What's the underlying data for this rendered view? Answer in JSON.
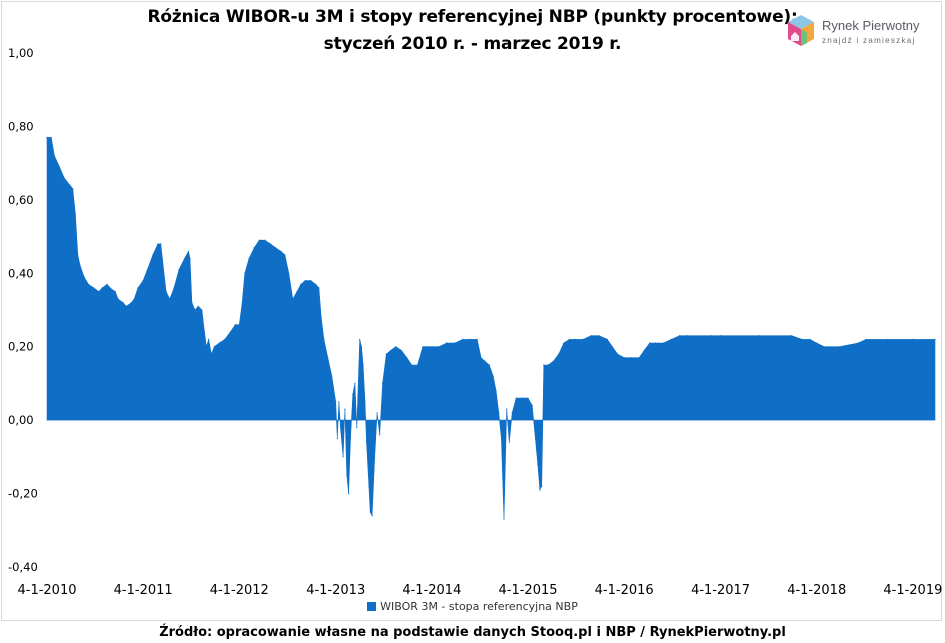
{
  "logo": {
    "name": "Rynek Pierwotny",
    "tagline": "znajdź i zamieszkaj"
  },
  "source": "Źródło: opracowanie własne na podstawie danych Stooq.pl i NBP / RynekPierwotny.pl",
  "chart_data": {
    "type": "area",
    "title": "Różnica WIBOR-u 3M i stopy referencyjnej NBP (punkty procentowe):",
    "subtitle": "styczeń 2010 r. - marzec 2019 r.",
    "xlabel": "",
    "ylabel": "",
    "ylim": [
      -0.4,
      1.0
    ],
    "yticks": [
      -0.4,
      -0.2,
      0.0,
      0.2,
      0.4,
      0.6,
      0.8,
      1.0
    ],
    "ytick_labels": [
      "-0,40",
      "-0,20",
      "0,00",
      "0,20",
      "0,40",
      "0,60",
      "0,80",
      "1,00"
    ],
    "xlim": [
      "2010-01-04",
      "2019-03-29"
    ],
    "xtick_dates": [
      "2010-01-04",
      "2011-01-04",
      "2012-01-04",
      "2013-01-04",
      "2014-01-04",
      "2015-01-04",
      "2016-01-04",
      "2017-01-04",
      "2018-01-04",
      "2019-01-04"
    ],
    "xtick_labels": [
      "4-1-2010",
      "4-1-2011",
      "4-1-2012",
      "4-1-2013",
      "4-1-2014",
      "4-1-2015",
      "4-1-2016",
      "4-1-2017",
      "4-1-2018",
      "4-1-2019"
    ],
    "grid": false,
    "legend": "bottom",
    "colors": {
      "series": "#0f6fc6"
    },
    "series": [
      {
        "name": "WIBOR 3M - stopa referencyjna NBP",
        "points": [
          [
            "2010-01-04",
            0.77
          ],
          [
            "2010-01-20",
            0.77
          ],
          [
            "2010-02-01",
            0.72
          ],
          [
            "2010-02-20",
            0.69
          ],
          [
            "2010-03-10",
            0.66
          ],
          [
            "2010-04-01",
            0.64
          ],
          [
            "2010-04-12",
            0.63
          ],
          [
            "2010-04-22",
            0.56
          ],
          [
            "2010-05-01",
            0.45
          ],
          [
            "2010-05-10",
            0.42
          ],
          [
            "2010-05-25",
            0.39
          ],
          [
            "2010-06-10",
            0.37
          ],
          [
            "2010-07-01",
            0.36
          ],
          [
            "2010-07-20",
            0.35
          ],
          [
            "2010-08-01",
            0.36
          ],
          [
            "2010-08-20",
            0.37
          ],
          [
            "2010-09-01",
            0.36
          ],
          [
            "2010-09-20",
            0.35
          ],
          [
            "2010-10-01",
            0.33
          ],
          [
            "2010-10-20",
            0.32
          ],
          [
            "2010-11-01",
            0.31
          ],
          [
            "2010-11-20",
            0.32
          ],
          [
            "2010-12-01",
            0.33
          ],
          [
            "2010-12-15",
            0.36
          ],
          [
            "2011-01-04",
            0.38
          ],
          [
            "2011-01-20",
            0.41
          ],
          [
            "2011-02-10",
            0.45
          ],
          [
            "2011-03-01",
            0.48
          ],
          [
            "2011-03-12",
            0.48
          ],
          [
            "2011-03-18",
            0.44
          ],
          [
            "2011-04-01",
            0.35
          ],
          [
            "2011-04-15",
            0.33
          ],
          [
            "2011-05-01",
            0.36
          ],
          [
            "2011-05-20",
            0.41
          ],
          [
            "2011-06-10",
            0.44
          ],
          [
            "2011-06-25",
            0.46
          ],
          [
            "2011-07-01",
            0.44
          ],
          [
            "2011-07-08",
            0.32
          ],
          [
            "2011-07-20",
            0.3
          ],
          [
            "2011-08-01",
            0.31
          ],
          [
            "2011-08-15",
            0.3
          ],
          [
            "2011-08-25",
            0.24
          ],
          [
            "2011-09-01",
            0.2
          ],
          [
            "2011-09-10",
            0.22
          ],
          [
            "2011-09-20",
            0.18
          ],
          [
            "2011-10-01",
            0.2
          ],
          [
            "2011-10-20",
            0.21
          ],
          [
            "2011-11-10",
            0.22
          ],
          [
            "2011-12-01",
            0.24
          ],
          [
            "2011-12-20",
            0.26
          ],
          [
            "2012-01-04",
            0.26
          ],
          [
            "2012-01-15",
            0.32
          ],
          [
            "2012-01-25",
            0.4
          ],
          [
            "2012-02-10",
            0.44
          ],
          [
            "2012-03-01",
            0.47
          ],
          [
            "2012-03-20",
            0.49
          ],
          [
            "2012-04-10",
            0.49
          ],
          [
            "2012-05-01",
            0.48
          ],
          [
            "2012-05-20",
            0.47
          ],
          [
            "2012-06-10",
            0.46
          ],
          [
            "2012-06-25",
            0.45
          ],
          [
            "2012-07-10",
            0.4
          ],
          [
            "2012-07-25",
            0.33
          ],
          [
            "2012-08-10",
            0.35
          ],
          [
            "2012-08-25",
            0.37
          ],
          [
            "2012-09-10",
            0.38
          ],
          [
            "2012-10-01",
            0.38
          ],
          [
            "2012-10-20",
            0.37
          ],
          [
            "2012-11-01",
            0.36
          ],
          [
            "2012-11-10",
            0.28
          ],
          [
            "2012-11-20",
            0.22
          ],
          [
            "2012-12-05",
            0.17
          ],
          [
            "2012-12-20",
            0.12
          ],
          [
            "2013-01-04",
            0.05
          ],
          [
            "2013-01-10",
            -0.05
          ],
          [
            "2013-01-16",
            0.05
          ],
          [
            "2013-01-22",
            -0.02
          ],
          [
            "2013-02-01",
            -0.1
          ],
          [
            "2013-02-08",
            0.03
          ],
          [
            "2013-02-15",
            -0.15
          ],
          [
            "2013-02-22",
            -0.2
          ],
          [
            "2013-03-01",
            -0.05
          ],
          [
            "2013-03-10",
            0.07
          ],
          [
            "2013-03-18",
            0.1
          ],
          [
            "2013-03-25",
            -0.02
          ],
          [
            "2013-04-05",
            0.22
          ],
          [
            "2013-04-12",
            0.2
          ],
          [
            "2013-04-18",
            0.15
          ],
          [
            "2013-04-25",
            0.05
          ],
          [
            "2013-05-01",
            -0.06
          ],
          [
            "2013-05-10",
            -0.18
          ],
          [
            "2013-05-15",
            -0.25
          ],
          [
            "2013-05-22",
            -0.26
          ],
          [
            "2013-06-01",
            -0.1
          ],
          [
            "2013-06-10",
            0.02
          ],
          [
            "2013-06-20",
            -0.04
          ],
          [
            "2013-07-01",
            0.1
          ],
          [
            "2013-07-15",
            0.18
          ],
          [
            "2013-08-01",
            0.19
          ],
          [
            "2013-08-20",
            0.2
          ],
          [
            "2013-09-10",
            0.19
          ],
          [
            "2013-10-01",
            0.17
          ],
          [
            "2013-10-20",
            0.15
          ],
          [
            "2013-11-10",
            0.15
          ],
          [
            "2013-12-01",
            0.2
          ],
          [
            "2013-12-20",
            0.2
          ],
          [
            "2014-01-04",
            0.2
          ],
          [
            "2014-02-01",
            0.2
          ],
          [
            "2014-03-01",
            0.21
          ],
          [
            "2014-04-01",
            0.21
          ],
          [
            "2014-05-01",
            0.22
          ],
          [
            "2014-06-01",
            0.22
          ],
          [
            "2014-06-25",
            0.22
          ],
          [
            "2014-07-10",
            0.17
          ],
          [
            "2014-07-25",
            0.16
          ],
          [
            "2014-08-10",
            0.15
          ],
          [
            "2014-08-25",
            0.12
          ],
          [
            "2014-09-05",
            0.08
          ],
          [
            "2014-09-15",
            0.02
          ],
          [
            "2014-09-25",
            -0.05
          ],
          [
            "2014-10-05",
            -0.27
          ],
          [
            "2014-10-15",
            0.03
          ],
          [
            "2014-10-25",
            -0.06
          ],
          [
            "2014-11-05",
            0.02
          ],
          [
            "2014-11-20",
            0.06
          ],
          [
            "2014-12-15",
            0.06
          ],
          [
            "2015-01-04",
            0.06
          ],
          [
            "2015-01-20",
            0.04
          ],
          [
            "2015-02-01",
            -0.05
          ],
          [
            "2015-02-10",
            -0.12
          ],
          [
            "2015-02-18",
            -0.19
          ],
          [
            "2015-02-25",
            -0.18
          ],
          [
            "2015-03-05",
            0.15
          ],
          [
            "2015-03-20",
            0.15
          ],
          [
            "2015-04-10",
            0.16
          ],
          [
            "2015-05-01",
            0.18
          ],
          [
            "2015-05-20",
            0.21
          ],
          [
            "2015-06-10",
            0.22
          ],
          [
            "2015-07-01",
            0.22
          ],
          [
            "2015-08-01",
            0.22
          ],
          [
            "2015-09-01",
            0.23
          ],
          [
            "2015-10-01",
            0.23
          ],
          [
            "2015-11-01",
            0.22
          ],
          [
            "2015-11-20",
            0.2
          ],
          [
            "2015-12-10",
            0.18
          ],
          [
            "2016-01-04",
            0.17
          ],
          [
            "2016-02-01",
            0.17
          ],
          [
            "2016-03-01",
            0.17
          ],
          [
            "2016-03-20",
            0.19
          ],
          [
            "2016-04-10",
            0.21
          ],
          [
            "2016-05-01",
            0.21
          ],
          [
            "2016-06-01",
            0.21
          ],
          [
            "2016-07-01",
            0.22
          ],
          [
            "2016-08-01",
            0.23
          ],
          [
            "2016-09-01",
            0.23
          ],
          [
            "2016-12-01",
            0.23
          ],
          [
            "2017-01-04",
            0.23
          ],
          [
            "2017-06-01",
            0.23
          ],
          [
            "2017-10-01",
            0.23
          ],
          [
            "2017-11-10",
            0.22
          ],
          [
            "2017-12-10",
            0.22
          ],
          [
            "2018-01-04",
            0.21
          ],
          [
            "2018-02-01",
            0.2
          ],
          [
            "2018-04-01",
            0.2
          ],
          [
            "2018-06-10",
            0.21
          ],
          [
            "2018-07-10",
            0.22
          ],
          [
            "2018-10-01",
            0.22
          ],
          [
            "2019-01-04",
            0.22
          ],
          [
            "2019-03-29",
            0.22
          ]
        ]
      }
    ]
  }
}
